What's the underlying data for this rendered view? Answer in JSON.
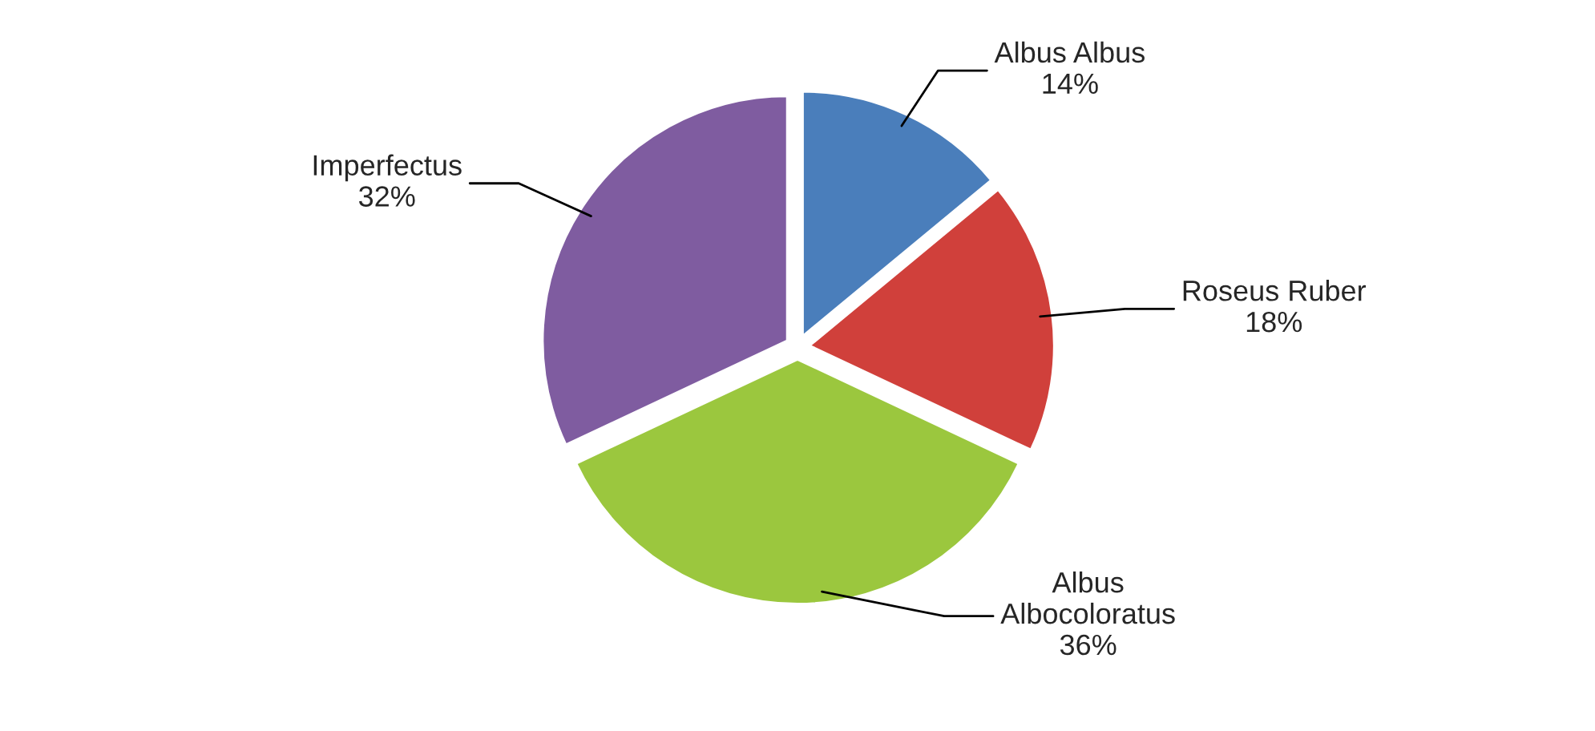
{
  "chart_data": {
    "type": "pie",
    "categories": [
      "Albus Albus",
      "Roseus Ruber",
      "Albus\nAlbocoloratus",
      "Imperfectus"
    ],
    "values": [
      14,
      18,
      36,
      32
    ],
    "value_labels": [
      "14%",
      "18%",
      "36%",
      "32%"
    ],
    "colors": [
      "#4a7ebb",
      "#d0403b",
      "#9bc73e",
      "#7f5ca0"
    ]
  }
}
